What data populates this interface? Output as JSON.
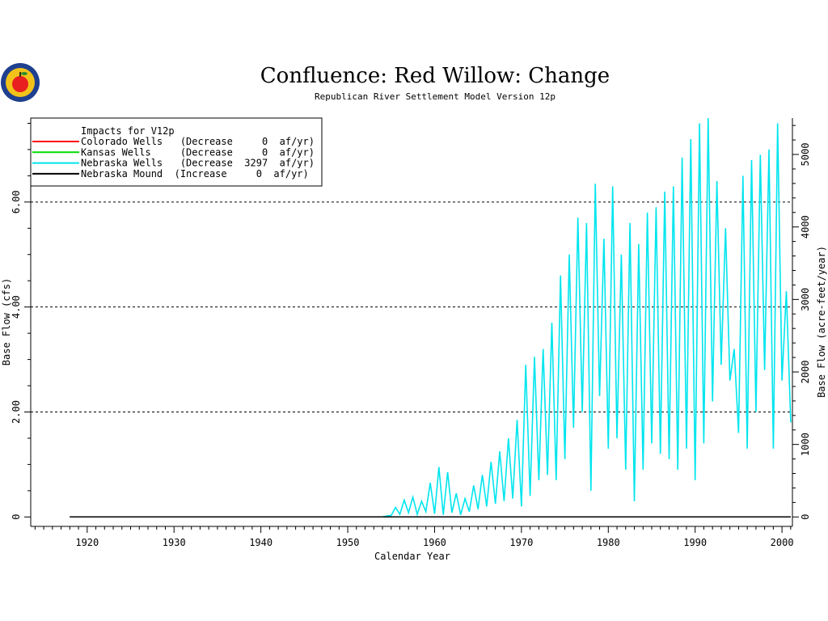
{
  "chart_data": {
    "type": "line",
    "title": "Confluence: Red Willow: Change",
    "subtitle": "Republican River Settlement Model Version 12p",
    "xlabel": "Calendar Year",
    "ylabel": "Base Flow (cfs)",
    "ylabel_right": "Base Flow (acre-feet/year)",
    "xlim": [
      1913.5,
      2001.2
    ],
    "ylim": [
      -0.18,
      7.6
    ],
    "ylim_right_note": "0 to 5000+ acre-feet/year",
    "x_ticks": [
      1920,
      1930,
      1940,
      1950,
      1960,
      1970,
      1980,
      1990,
      2000
    ],
    "x_tick_labels": [
      "1920",
      "1930",
      "1940",
      "1950",
      "1960",
      "1970",
      "1980",
      "1990",
      "2000"
    ],
    "y_ticks": [
      0,
      2,
      4,
      6
    ],
    "y_tick_labels": [
      "0",
      "2.00",
      "4.00",
      "6.00"
    ],
    "y_right_ticks": [
      0,
      1000,
      2000,
      3000,
      4000,
      5000
    ],
    "y_right_tick_labels": [
      "0",
      "1000",
      "2000",
      "3000",
      "4000",
      "5000"
    ],
    "grid_y": [
      2,
      4,
      6
    ],
    "legend": {
      "title": "Impacts for V12p",
      "placement": "top-left",
      "entries": [
        {
          "name": "Colorado Wells",
          "text": "Colorado Wells   (Decrease     0  af/yr)",
          "color": "#ff0000"
        },
        {
          "name": "Kansas Wells",
          "text": "Kansas Wells     (Decrease     0  af/yr)",
          "color": "#00dd00"
        },
        {
          "name": "Nebraska Wells",
          "text": "Nebraska Wells   (Decrease  3297  af/yr)",
          "color": "#00e5ee"
        },
        {
          "name": "Nebraska Mound",
          "text": "Nebraska Mound  (Increase     0  af/yr)",
          "color": "#000000"
        }
      ]
    },
    "series": [
      {
        "name": "Colorado Wells",
        "color": "#ff0000",
        "x": [
          1918,
          2001
        ],
        "y": [
          0,
          0
        ]
      },
      {
        "name": "Kansas Wells",
        "color": "#00dd00",
        "x": [
          1918,
          2001
        ],
        "y": [
          0,
          0
        ]
      },
      {
        "name": "Nebraska Mound",
        "color": "#000000",
        "x": [
          1918,
          2001
        ],
        "y": [
          0,
          0
        ]
      },
      {
        "name": "Nebraska Wells",
        "color": "#00e5ee",
        "x": [
          1954.0,
          1954.5,
          1955.0,
          1955.5,
          1956.0,
          1956.5,
          1957.0,
          1957.5,
          1958.0,
          1958.5,
          1959.0,
          1959.5,
          1960.0,
          1960.5,
          1961.0,
          1961.5,
          1962.0,
          1962.5,
          1963.0,
          1963.5,
          1964.0,
          1964.5,
          1965.0,
          1965.5,
          1966.0,
          1966.5,
          1967.0,
          1967.5,
          1968.0,
          1968.5,
          1969.0,
          1969.5,
          1970.0,
          1970.5,
          1971.0,
          1971.5,
          1972.0,
          1972.5,
          1973.0,
          1973.5,
          1974.0,
          1974.5,
          1975.0,
          1975.5,
          1976.0,
          1976.5,
          1977.0,
          1977.5,
          1978.0,
          1978.5,
          1979.0,
          1979.5,
          1980.0,
          1980.5,
          1981.0,
          1981.5,
          1982.0,
          1982.5,
          1983.0,
          1983.5,
          1984.0,
          1984.5,
          1985.0,
          1985.5,
          1986.0,
          1986.5,
          1987.0,
          1987.5,
          1988.0,
          1988.5,
          1989.0,
          1989.5,
          1990.0,
          1990.5,
          1991.0,
          1991.5,
          1992.0,
          1992.5,
          1993.0,
          1993.5,
          1994.0,
          1994.5,
          1995.0,
          1995.5,
          1996.0,
          1996.5,
          1997.0,
          1997.5,
          1998.0,
          1998.5,
          1999.0,
          1999.5,
          2000.0,
          2000.5,
          2001.0
        ],
        "y": [
          0.0,
          0.02,
          0.03,
          0.18,
          0.05,
          0.32,
          0.08,
          0.38,
          0.05,
          0.3,
          0.1,
          0.65,
          0.06,
          0.95,
          0.04,
          0.85,
          0.08,
          0.45,
          0.04,
          0.35,
          0.1,
          0.6,
          0.15,
          0.8,
          0.2,
          1.05,
          0.25,
          1.25,
          0.3,
          1.5,
          0.35,
          1.85,
          0.2,
          2.9,
          0.4,
          3.05,
          0.7,
          3.2,
          0.8,
          3.7,
          0.7,
          4.6,
          1.1,
          5.0,
          1.7,
          5.7,
          2.0,
          5.6,
          0.5,
          6.35,
          2.3,
          5.3,
          1.3,
          6.3,
          1.5,
          5.0,
          0.9,
          5.6,
          0.3,
          5.2,
          0.9,
          5.8,
          1.4,
          5.9,
          1.2,
          6.2,
          1.1,
          6.3,
          0.9,
          6.85,
          1.3,
          7.2,
          0.7,
          7.5,
          1.4,
          7.6,
          2.2,
          6.4,
          2.9,
          5.5,
          2.6,
          3.2,
          1.6,
          6.5,
          1.3,
          6.8,
          2.0,
          6.9,
          2.8,
          7.0,
          1.3,
          7.5,
          2.6,
          4.3,
          1.8
        ]
      }
    ]
  }
}
